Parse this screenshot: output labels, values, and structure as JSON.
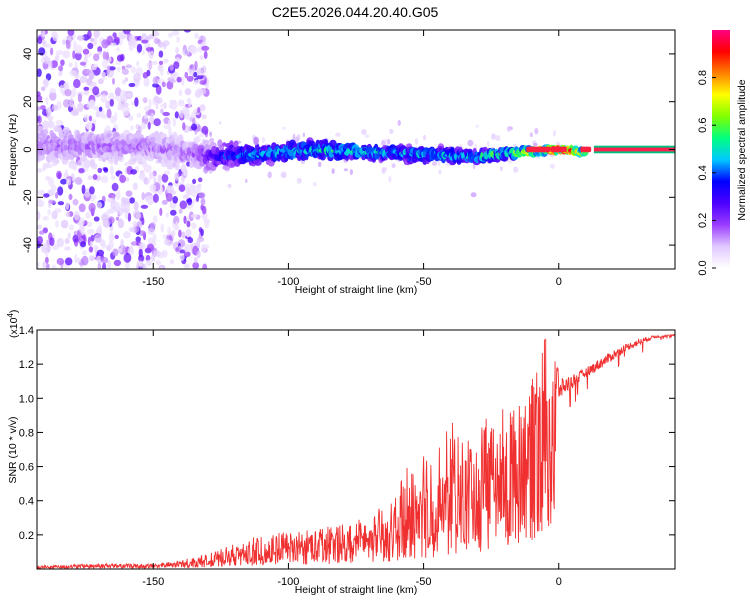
{
  "title": "C2E5.2026.044.20.40.G05",
  "chart_data": [
    {
      "type": "heatmap",
      "xlabel": "Height of straight line (km)",
      "ylabel": "Frequency (Hz)",
      "xlim": [
        -193,
        43
      ],
      "ylim": [
        -50,
        50
      ],
      "xticks": [
        -150,
        -100,
        -50,
        0
      ],
      "yticks": [
        -40,
        -20,
        0,
        20,
        40
      ],
      "colorbar": {
        "label": "Normalized spectral amplitude",
        "range": [
          0.0,
          1.0
        ],
        "ticks": [
          0.0,
          0.2,
          0.4,
          0.6,
          0.8
        ],
        "tick_labels": [
          "0.0",
          "0.2",
          "0.4",
          "0.6",
          "0.8"
        ],
        "colors": [
          "#ffffff",
          "#e0c8ff",
          "#9a3cff",
          "#4b00ff",
          "#0000ff",
          "#00c8ff",
          "#00ff80",
          "#80ff00",
          "#ffff00",
          "#ff8000",
          "#ff0000",
          "#ff0080"
        ]
      },
      "description_points": {
        "signal_band_center_hz": [
          [
            -193,
            2
          ],
          [
            -150,
            1
          ],
          [
            -130,
            -3
          ],
          [
            -110,
            -2
          ],
          [
            -90,
            0
          ],
          [
            -70,
            -1
          ],
          [
            -50,
            -2
          ],
          [
            -30,
            -3
          ],
          [
            -15,
            -1
          ],
          [
            0,
            0
          ],
          [
            10,
            -1
          ],
          [
            43,
            0
          ]
        ],
        "signal_band_halfwidth_hz": [
          [
            -193,
            8
          ],
          [
            -130,
            6
          ],
          [
            -110,
            4
          ],
          [
            -90,
            4
          ],
          [
            -50,
            3
          ],
          [
            -20,
            2
          ],
          [
            0,
            1
          ],
          [
            43,
            1
          ]
        ],
        "peak_amplitude": [
          [
            -193,
            0.15
          ],
          [
            -135,
            0.15
          ],
          [
            -120,
            0.4
          ],
          [
            -90,
            0.5
          ],
          [
            -60,
            0.45
          ],
          [
            -35,
            0.5
          ],
          [
            -20,
            0.55
          ],
          [
            -10,
            0.75
          ],
          [
            0,
            0.9
          ],
          [
            10,
            0.7
          ],
          [
            15,
            0.95
          ],
          [
            43,
            1.0
          ]
        ]
      }
    },
    {
      "type": "line",
      "xlabel": "Height of straight line (km)",
      "ylabel": "SNR (10 * v/v)",
      "y_multiplier": "(x10",
      "y_multiplier_exp": "4",
      "y_multiplier_close": ")",
      "xlim": [
        -193,
        43
      ],
      "ylim": [
        0,
        1.4
      ],
      "xticks": [
        -150,
        -100,
        -50,
        0
      ],
      "yticks": [
        0.2,
        0.4,
        0.6,
        0.8,
        1.0,
        1.2,
        1.4
      ],
      "ytick_labels": [
        "0.2",
        "0.4",
        "0.6",
        "0.8",
        "1.0",
        "1.2",
        "1.4"
      ],
      "series": [
        {
          "name": "SNR",
          "color": "#f03030",
          "envelope_x": [
            -193,
            -170,
            -150,
            -140,
            -130,
            -120,
            -110,
            -100,
            -90,
            -80,
            -70,
            -60,
            -55,
            -50,
            -45,
            -40,
            -35,
            -30,
            -25,
            -20,
            -15,
            -10,
            -5,
            0,
            5,
            10,
            15,
            20,
            25,
            30,
            35,
            43
          ],
          "envelope_mean": [
            0.01,
            0.02,
            0.02,
            0.03,
            0.05,
            0.08,
            0.1,
            0.12,
            0.13,
            0.15,
            0.18,
            0.22,
            0.28,
            0.3,
            0.35,
            0.4,
            0.42,
            0.45,
            0.5,
            0.55,
            0.6,
            0.8,
            0.95,
            1.05,
            1.1,
            1.15,
            1.2,
            1.25,
            1.3,
            1.33,
            1.36,
            1.37
          ],
          "envelope_max": [
            0.02,
            0.03,
            0.03,
            0.05,
            0.09,
            0.15,
            0.2,
            0.22,
            0.24,
            0.28,
            0.32,
            0.42,
            0.7,
            0.75,
            0.7,
            0.88,
            0.75,
            0.85,
            0.9,
            0.95,
            1.0,
            1.1,
            1.38,
            1.2,
            1.2,
            1.22,
            1.28,
            1.32,
            1.35,
            1.38,
            1.38,
            1.38
          ]
        }
      ]
    }
  ]
}
